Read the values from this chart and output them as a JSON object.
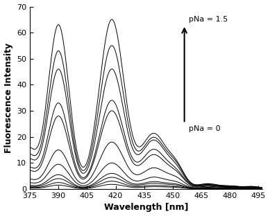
{
  "xlabel": "Wavelength [nm]",
  "ylabel": "Fluorescence Intensity",
  "xlim": [
    375,
    497
  ],
  "ylim": [
    0,
    70
  ],
  "xticks": [
    375,
    390,
    405,
    420,
    435,
    450,
    465,
    480,
    495
  ],
  "yticks": [
    0,
    10,
    20,
    30,
    40,
    50,
    60,
    70
  ],
  "background_color": "#ffffff",
  "line_color": "#000000",
  "annotation_pna15": "pNa = 1.5",
  "annotation_pna0": "pNa = 0",
  "fontsize_labels": 9,
  "fontsize_ticks": 8,
  "curves": [
    {
      "p1": 1.5,
      "p2": 1.8,
      "p3": 0.9,
      "p4": 0.5,
      "p5": 0.4,
      "p6": 0.35
    },
    {
      "p1": 2.5,
      "p2": 3.0,
      "p3": 1.4,
      "p4": 0.7,
      "p5": 0.6,
      "p6": 0.5
    },
    {
      "p1": 4.0,
      "p2": 4.5,
      "p3": 2.2,
      "p4": 1.1,
      "p5": 0.9,
      "p6": 0.75
    },
    {
      "p1": 5.5,
      "p2": 6.0,
      "p3": 2.8,
      "p4": 1.4,
      "p5": 1.1,
      "p6": 0.9
    },
    {
      "p1": 9.5,
      "p2": 10.0,
      "p3": 4.5,
      "p4": 2.0,
      "p5": 1.6,
      "p6": 1.3
    },
    {
      "p1": 15.0,
      "p2": 18.0,
      "p3": 8.0,
      "p4": 3.2,
      "p5": 2.5,
      "p6": 2.0
    },
    {
      "p1": 28.0,
      "p2": 30.0,
      "p3": 13.0,
      "p4": 4.5,
      "p5": 3.2,
      "p6": 2.5
    },
    {
      "p1": 33.0,
      "p2": 34.0,
      "p3": 15.0,
      "p4": 5.0,
      "p5": 3.6,
      "p6": 2.8
    },
    {
      "p1": 46.0,
      "p2": 46.0,
      "p3": 18.5,
      "p4": 6.0,
      "p5": 4.2,
      "p6": 3.2
    },
    {
      "p1": 53.0,
      "p2": 55.0,
      "p3": 19.5,
      "p4": 6.8,
      "p5": 4.8,
      "p6": 3.6
    },
    {
      "p1": 63.0,
      "p2": 65.0,
      "p3": 21.0,
      "p4": 7.2,
      "p5": 5.0,
      "p6": 3.8
    }
  ]
}
